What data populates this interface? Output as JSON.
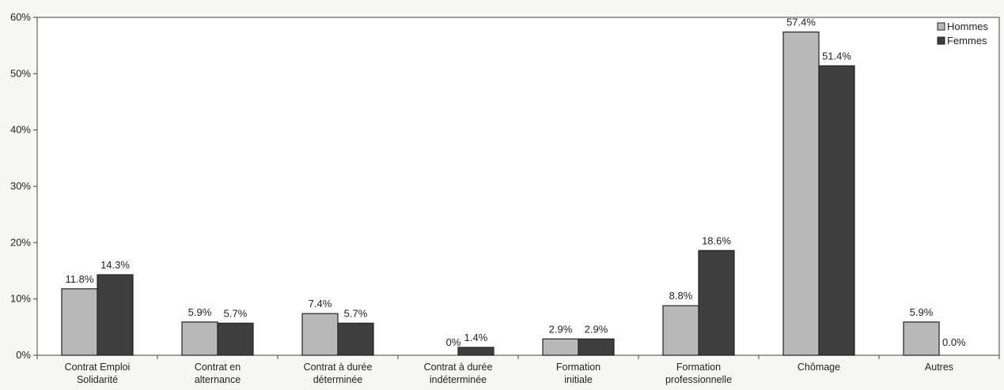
{
  "chart_data": {
    "type": "bar",
    "categories": [
      [
        "Contrat Emploi",
        "Solidarité"
      ],
      [
        "Contrat en",
        "alternance"
      ],
      [
        "Contrat à durée",
        "déterminée"
      ],
      [
        "Contrat à durée",
        "indéterminée"
      ],
      [
        "Formation",
        "initiale"
      ],
      [
        "Formation",
        "professionnelle"
      ],
      [
        "Chômage"
      ],
      [
        "Autres"
      ]
    ],
    "series": [
      {
        "name": "Hommes",
        "color": "#b9b9b9",
        "values": [
          11.8,
          5.9,
          7.4,
          0,
          2.9,
          8.8,
          57.4,
          5.9
        ],
        "labels": [
          "11.8%",
          "5.9%",
          "7.4%",
          "0%",
          "2.9%",
          "8.8%",
          "57.4%",
          "5.9%"
        ]
      },
      {
        "name": "Femmes",
        "color": "#3e3e3e",
        "values": [
          14.3,
          5.7,
          5.7,
          1.4,
          2.9,
          18.6,
          51.4,
          0.0
        ],
        "labels": [
          "14.3%",
          "5.7%",
          "5.7%",
          "1.4%",
          "2.9%",
          "18.6%",
          "51.4%",
          "0.0%"
        ]
      }
    ],
    "yticks": [
      "0%",
      "10%",
      "20%",
      "30%",
      "40%",
      "50%",
      "60%"
    ],
    "ylim": [
      0,
      60
    ],
    "grid": false,
    "legend_position": "top-right"
  }
}
